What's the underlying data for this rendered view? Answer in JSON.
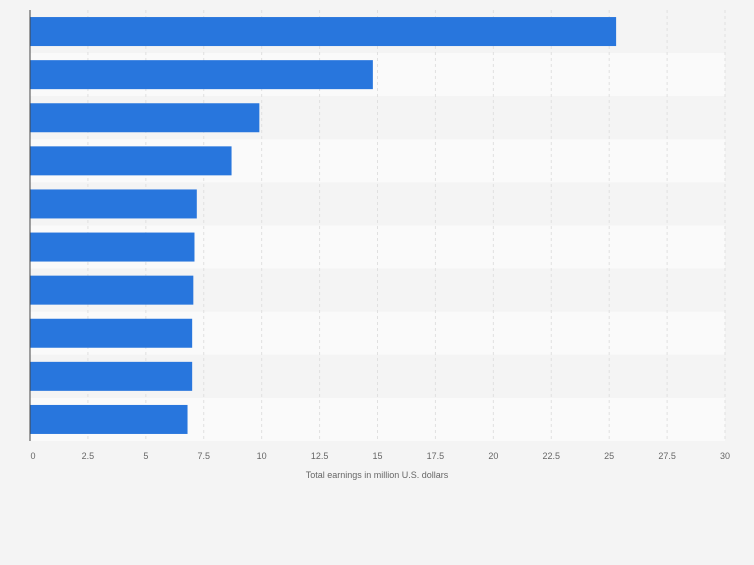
{
  "chart_data": {
    "type": "bar",
    "orientation": "horizontal",
    "title": "",
    "xlabel": "Total earnings in million U.S. dollars",
    "ylabel": "",
    "xlim": [
      0,
      30
    ],
    "x_ticks": [
      0,
      2.5,
      5,
      7.5,
      10,
      12.5,
      15,
      17.5,
      20,
      22.5,
      25,
      27.5,
      30
    ],
    "x_tick_labels": [
      "0",
      "2.5",
      "5",
      "7.5",
      "10",
      "12.5",
      "15",
      "17.5",
      "20",
      "22.5",
      "25",
      "27.5",
      "30"
    ],
    "categories": [
      "",
      "",
      "",
      "",
      "",
      "",
      "",
      "",
      "",
      ""
    ],
    "values": [
      25.3,
      14.8,
      9.9,
      8.7,
      7.2,
      7.1,
      7.05,
      7.0,
      7.0,
      6.8
    ],
    "grid": true,
    "legend": "none",
    "colors": {
      "bar": "#2876dd",
      "band_dark": "#f4f4f4",
      "band_light": "#fafafa",
      "grid": "#e0e0e0",
      "axis": "#444444",
      "tick_text": "#666666"
    }
  }
}
